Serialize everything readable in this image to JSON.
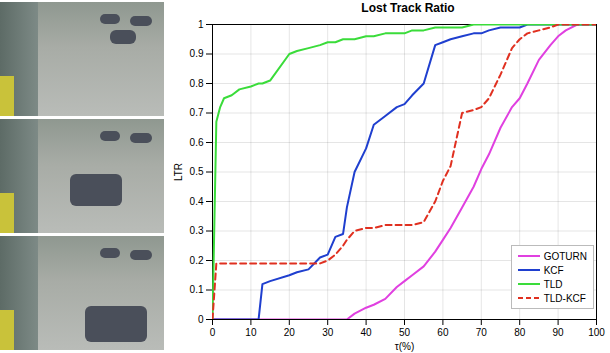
{
  "chart_data": {
    "type": "line",
    "title": "Lost Track Ratio",
    "x_label": "τ(%)",
    "y_label": "LTR",
    "x": [
      0,
      1,
      2,
      3,
      5,
      7,
      10,
      12,
      13,
      15,
      20,
      22,
      25,
      28,
      30,
      32,
      34,
      35,
      37,
      40,
      42,
      45,
      48,
      50,
      52,
      55,
      58,
      60,
      62,
      65,
      68,
      70,
      72,
      75,
      78,
      80,
      82,
      85,
      88,
      90,
      92,
      95,
      98,
      100
    ],
    "series": [
      {
        "name": "GOTURN",
        "color": "#e040e0",
        "line_style": "solid",
        "values": [
          0,
          0,
          0,
          0,
          0,
          0,
          0,
          0,
          0,
          0,
          0,
          0,
          0,
          0,
          0,
          0,
          0,
          0,
          0.02,
          0.04,
          0.05,
          0.07,
          0.11,
          0.13,
          0.15,
          0.18,
          0.23,
          0.27,
          0.31,
          0.38,
          0.45,
          0.51,
          0.56,
          0.65,
          0.72,
          0.75,
          0.8,
          0.88,
          0.93,
          0.96,
          0.98,
          1,
          1,
          1
        ]
      },
      {
        "name": "KCF",
        "color": "#1f3fcf",
        "line_style": "solid",
        "values": [
          0,
          0,
          0,
          0,
          0,
          0,
          0,
          0,
          0.12,
          0.13,
          0.15,
          0.16,
          0.17,
          0.21,
          0.22,
          0.28,
          0.29,
          0.38,
          0.5,
          0.58,
          0.66,
          0.69,
          0.72,
          0.73,
          0.76,
          0.8,
          0.93,
          0.94,
          0.95,
          0.96,
          0.97,
          0.97,
          0.98,
          0.99,
          0.99,
          0.99,
          1,
          1,
          1,
          1,
          1,
          1,
          1,
          1
        ]
      },
      {
        "name": "TLD",
        "color": "#3adc3a",
        "line_style": "solid",
        "values": [
          0,
          0.67,
          0.72,
          0.75,
          0.76,
          0.78,
          0.79,
          0.8,
          0.8,
          0.81,
          0.9,
          0.91,
          0.92,
          0.93,
          0.94,
          0.94,
          0.95,
          0.95,
          0.95,
          0.96,
          0.96,
          0.97,
          0.97,
          0.97,
          0.98,
          0.98,
          0.99,
          0.99,
          0.99,
          0.99,
          1,
          1,
          1,
          1,
          1,
          1,
          1,
          1,
          1,
          1,
          1,
          1,
          1,
          1
        ]
      },
      {
        "name": "TLD-KCF",
        "color": "#e03020",
        "line_style": "dashed",
        "values": [
          0,
          0.19,
          0.19,
          0.19,
          0.19,
          0.19,
          0.19,
          0.19,
          0.19,
          0.19,
          0.19,
          0.19,
          0.19,
          0.19,
          0.2,
          0.22,
          0.25,
          0.27,
          0.3,
          0.31,
          0.31,
          0.32,
          0.32,
          0.32,
          0.32,
          0.33,
          0.4,
          0.47,
          0.52,
          0.7,
          0.71,
          0.72,
          0.75,
          0.83,
          0.92,
          0.95,
          0.97,
          0.98,
          0.99,
          1,
          1,
          1,
          1,
          1
        ]
      }
    ],
    "xlim": [
      0,
      100
    ],
    "xticks": [
      0,
      10,
      20,
      30,
      40,
      50,
      60,
      70,
      80,
      90,
      100
    ],
    "ylim": [
      0,
      1
    ],
    "yticks": [
      0,
      0.1,
      0.2,
      0.3,
      0.4,
      0.5,
      0.6,
      0.7,
      0.8,
      0.9,
      1
    ],
    "grid": true,
    "legend": "bottom-right"
  }
}
